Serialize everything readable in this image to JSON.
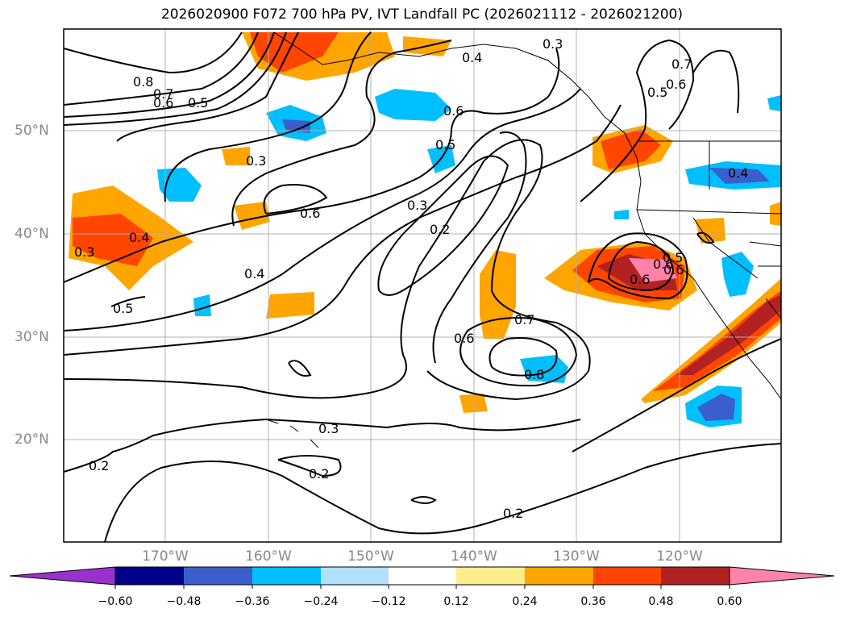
{
  "title": "2026020900 F072 700 hPa PV, IVT Landfall PC (2026021112 - 2026021200)",
  "lat_labels": [
    "50°N",
    "40°N",
    "30°N",
    "20°N"
  ],
  "lon_labels": [
    "170°W",
    "160°W",
    "150°W",
    "140°W",
    "130°W",
    "120°W"
  ],
  "contour_labels": [
    "0.8",
    "0.7",
    "0.6",
    "0.5",
    "0.3",
    "0.4",
    "0.6",
    "0.3",
    "0.6",
    "0.5",
    "0.7",
    "0.6",
    "0.5",
    "0.3",
    "0.2",
    "0.4",
    "0.4",
    "0.3",
    "0.6",
    "0.5",
    "0.6",
    "0.7",
    "0.6",
    "0.8",
    "0.3",
    "0.2",
    "0.2",
    "0.2",
    "0.6",
    "0.5",
    "0.4"
  ],
  "colorbar": {
    "ticks": [
      "−0.60",
      "−0.48",
      "−0.36",
      "−0.24",
      "−0.12",
      "0.12",
      "0.24",
      "0.36",
      "0.48",
      "0.60"
    ],
    "colors": [
      "#9932cc",
      "#00008b",
      "#3a5fcd",
      "#00bfff",
      "#b0e2ff",
      "#ffffff",
      "#ffec8b",
      "#ffa500",
      "#ff4500",
      "#b22222",
      "#ff82ab"
    ]
  }
}
